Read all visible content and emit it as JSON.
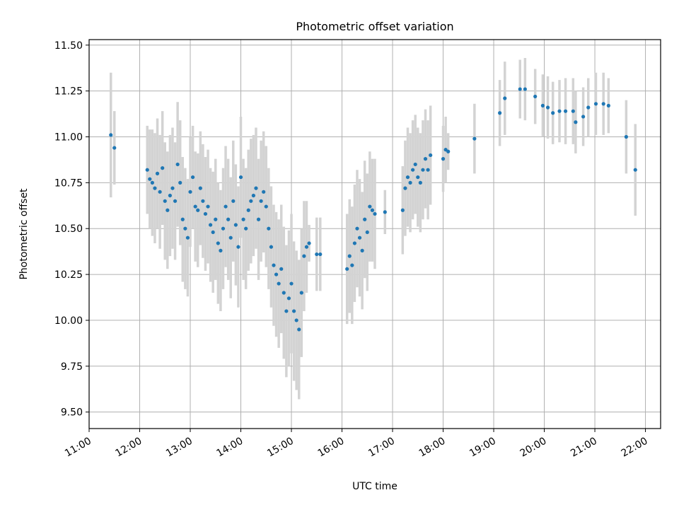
{
  "chart_data": {
    "type": "scatter",
    "title": "Photometric offset variation",
    "xlabel": "UTC time",
    "ylabel": "Photometric offset",
    "x_unit": "hours UTC",
    "xlim": [
      11.0,
      22.3
    ],
    "ylim": [
      9.41,
      11.53
    ],
    "grid": true,
    "x_ticks": [
      {
        "value": 11,
        "label": "11:00"
      },
      {
        "value": 12,
        "label": "12:00"
      },
      {
        "value": 13,
        "label": "13:00"
      },
      {
        "value": 14,
        "label": "14:00"
      },
      {
        "value": 15,
        "label": "15:00"
      },
      {
        "value": 16,
        "label": "16:00"
      },
      {
        "value": 17,
        "label": "17:00"
      },
      {
        "value": 18,
        "label": "18:00"
      },
      {
        "value": 19,
        "label": "19:00"
      },
      {
        "value": 20,
        "label": "20:00"
      },
      {
        "value": 21,
        "label": "21:00"
      },
      {
        "value": 22,
        "label": "22:00"
      }
    ],
    "y_ticks": [
      {
        "value": 9.5,
        "label": "9.50"
      },
      {
        "value": 9.75,
        "label": "9.75"
      },
      {
        "value": 10.0,
        "label": "10.00"
      },
      {
        "value": 10.25,
        "label": "10.25"
      },
      {
        "value": 10.5,
        "label": "10.50"
      },
      {
        "value": 10.75,
        "label": "10.75"
      },
      {
        "value": 11.0,
        "label": "11.00"
      },
      {
        "value": 11.25,
        "label": "11.25"
      },
      {
        "value": 11.5,
        "label": "11.50"
      }
    ],
    "point_color": "#1f77b4",
    "errorbar_color": "#d3d3d3",
    "series": [
      {
        "points": [
          {
            "x": 11.43,
            "y": 11.01,
            "err": 0.34
          },
          {
            "x": 11.5,
            "y": 10.94,
            "err": 0.2
          },
          {
            "x": 12.15,
            "y": 10.82,
            "err": 0.24
          },
          {
            "x": 12.2,
            "y": 10.77,
            "err": 0.27
          },
          {
            "x": 12.25,
            "y": 10.75,
            "err": 0.29
          },
          {
            "x": 12.3,
            "y": 10.72,
            "err": 0.3
          },
          {
            "x": 12.35,
            "y": 10.8,
            "err": 0.3
          },
          {
            "x": 12.4,
            "y": 10.7,
            "err": 0.31
          },
          {
            "x": 12.45,
            "y": 10.83,
            "err": 0.31
          },
          {
            "x": 12.5,
            "y": 10.65,
            "err": 0.32
          },
          {
            "x": 12.55,
            "y": 10.6,
            "err": 0.32
          },
          {
            "x": 12.6,
            "y": 10.68,
            "err": 0.33
          },
          {
            "x": 12.65,
            "y": 10.72,
            "err": 0.33
          },
          {
            "x": 12.7,
            "y": 10.65,
            "err": 0.32
          },
          {
            "x": 12.75,
            "y": 10.85,
            "err": 0.34
          },
          {
            "x": 12.8,
            "y": 10.75,
            "err": 0.34
          },
          {
            "x": 12.85,
            "y": 10.55,
            "err": 0.34
          },
          {
            "x": 12.9,
            "y": 10.5,
            "err": 0.33
          },
          {
            "x": 12.95,
            "y": 10.45,
            "err": 0.32
          },
          {
            "x": 13.0,
            "y": 10.7,
            "err": 0.3
          },
          {
            "x": 13.05,
            "y": 10.78,
            "err": 0.28
          },
          {
            "x": 13.1,
            "y": 10.62,
            "err": 0.3
          },
          {
            "x": 13.15,
            "y": 10.6,
            "err": 0.31
          },
          {
            "x": 13.2,
            "y": 10.72,
            "err": 0.31
          },
          {
            "x": 13.25,
            "y": 10.65,
            "err": 0.31
          },
          {
            "x": 13.3,
            "y": 10.58,
            "err": 0.31
          },
          {
            "x": 13.35,
            "y": 10.62,
            "err": 0.31
          },
          {
            "x": 13.4,
            "y": 10.52,
            "err": 0.31
          },
          {
            "x": 13.45,
            "y": 10.48,
            "err": 0.33
          },
          {
            "x": 13.5,
            "y": 10.55,
            "err": 0.33
          },
          {
            "x": 13.55,
            "y": 10.42,
            "err": 0.33
          },
          {
            "x": 13.6,
            "y": 10.38,
            "err": 0.33
          },
          {
            "x": 13.65,
            "y": 10.5,
            "err": 0.33
          },
          {
            "x": 13.7,
            "y": 10.62,
            "err": 0.33
          },
          {
            "x": 13.75,
            "y": 10.55,
            "err": 0.33
          },
          {
            "x": 13.8,
            "y": 10.45,
            "err": 0.33
          },
          {
            "x": 13.85,
            "y": 10.65,
            "err": 0.33
          },
          {
            "x": 13.9,
            "y": 10.52,
            "err": 0.33
          },
          {
            "x": 13.95,
            "y": 10.4,
            "err": 0.33
          },
          {
            "x": 14.0,
            "y": 10.78,
            "err": 0.33
          },
          {
            "x": 14.05,
            "y": 10.55,
            "err": 0.33
          },
          {
            "x": 14.1,
            "y": 10.5,
            "err": 0.33
          },
          {
            "x": 14.15,
            "y": 10.6,
            "err": 0.33
          },
          {
            "x": 14.2,
            "y": 10.65,
            "err": 0.34
          },
          {
            "x": 14.25,
            "y": 10.68,
            "err": 0.33
          },
          {
            "x": 14.3,
            "y": 10.72,
            "err": 0.33
          },
          {
            "x": 14.35,
            "y": 10.55,
            "err": 0.33
          },
          {
            "x": 14.4,
            "y": 10.65,
            "err": 0.33
          },
          {
            "x": 14.45,
            "y": 10.7,
            "err": 0.33
          },
          {
            "x": 14.5,
            "y": 10.62,
            "err": 0.33
          },
          {
            "x": 14.55,
            "y": 10.5,
            "err": 0.33
          },
          {
            "x": 14.6,
            "y": 10.4,
            "err": 0.33
          },
          {
            "x": 14.65,
            "y": 10.3,
            "err": 0.33
          },
          {
            "x": 14.7,
            "y": 10.25,
            "err": 0.34
          },
          {
            "x": 14.75,
            "y": 10.2,
            "err": 0.35
          },
          {
            "x": 14.8,
            "y": 10.28,
            "err": 0.35
          },
          {
            "x": 14.85,
            "y": 10.15,
            "err": 0.36
          },
          {
            "x": 14.9,
            "y": 10.05,
            "err": 0.36
          },
          {
            "x": 14.95,
            "y": 10.12,
            "err": 0.37
          },
          {
            "x": 15.0,
            "y": 10.2,
            "err": 0.38
          },
          {
            "x": 15.05,
            "y": 10.05,
            "err": 0.38
          },
          {
            "x": 15.1,
            "y": 10.0,
            "err": 0.38
          },
          {
            "x": 15.15,
            "y": 9.95,
            "err": 0.38
          },
          {
            "x": 15.2,
            "y": 10.15,
            "err": 0.35
          },
          {
            "x": 15.25,
            "y": 10.35,
            "err": 0.3
          },
          {
            "x": 15.3,
            "y": 10.4,
            "err": 0.25
          },
          {
            "x": 15.35,
            "y": 10.42,
            "err": 0.1
          },
          {
            "x": 15.5,
            "y": 10.36,
            "err": 0.2
          },
          {
            "x": 15.57,
            "y": 10.36,
            "err": 0.2
          },
          {
            "x": 16.1,
            "y": 10.28,
            "err": 0.3
          },
          {
            "x": 16.15,
            "y": 10.35,
            "err": 0.31
          },
          {
            "x": 16.2,
            "y": 10.3,
            "err": 0.32
          },
          {
            "x": 16.25,
            "y": 10.42,
            "err": 0.32
          },
          {
            "x": 16.3,
            "y": 10.5,
            "err": 0.32
          },
          {
            "x": 16.35,
            "y": 10.45,
            "err": 0.32
          },
          {
            "x": 16.4,
            "y": 10.38,
            "err": 0.32
          },
          {
            "x": 16.45,
            "y": 10.55,
            "err": 0.32
          },
          {
            "x": 16.5,
            "y": 10.48,
            "err": 0.32
          },
          {
            "x": 16.55,
            "y": 10.62,
            "err": 0.3
          },
          {
            "x": 16.6,
            "y": 10.6,
            "err": 0.28
          },
          {
            "x": 16.65,
            "y": 10.58,
            "err": 0.3
          },
          {
            "x": 16.85,
            "y": 10.59,
            "err": 0.12
          },
          {
            "x": 17.2,
            "y": 10.6,
            "err": 0.24
          },
          {
            "x": 17.25,
            "y": 10.72,
            "err": 0.26
          },
          {
            "x": 17.3,
            "y": 10.78,
            "err": 0.27
          },
          {
            "x": 17.35,
            "y": 10.75,
            "err": 0.27
          },
          {
            "x": 17.4,
            "y": 10.82,
            "err": 0.27
          },
          {
            "x": 17.45,
            "y": 10.85,
            "err": 0.27
          },
          {
            "x": 17.5,
            "y": 10.78,
            "err": 0.27
          },
          {
            "x": 17.55,
            "y": 10.75,
            "err": 0.27
          },
          {
            "x": 17.6,
            "y": 10.82,
            "err": 0.27
          },
          {
            "x": 17.65,
            "y": 10.88,
            "err": 0.27
          },
          {
            "x": 17.7,
            "y": 10.82,
            "err": 0.27
          },
          {
            "x": 17.75,
            "y": 10.9,
            "err": 0.27
          },
          {
            "x": 18.0,
            "y": 10.88,
            "err": 0.18
          },
          {
            "x": 18.05,
            "y": 10.93,
            "err": 0.18
          },
          {
            "x": 18.1,
            "y": 10.92,
            "err": 0.1
          },
          {
            "x": 18.62,
            "y": 10.99,
            "err": 0.19
          },
          {
            "x": 19.12,
            "y": 11.13,
            "err": 0.18
          },
          {
            "x": 19.22,
            "y": 11.21,
            "err": 0.2
          },
          {
            "x": 19.52,
            "y": 11.26,
            "err": 0.16
          },
          {
            "x": 19.62,
            "y": 11.26,
            "err": 0.17
          },
          {
            "x": 19.82,
            "y": 11.22,
            "err": 0.15
          },
          {
            "x": 19.97,
            "y": 11.17,
            "err": 0.17
          },
          {
            "x": 20.07,
            "y": 11.16,
            "err": 0.17
          },
          {
            "x": 20.17,
            "y": 11.13,
            "err": 0.17
          },
          {
            "x": 20.3,
            "y": 11.14,
            "err": 0.17
          },
          {
            "x": 20.42,
            "y": 11.14,
            "err": 0.18
          },
          {
            "x": 20.57,
            "y": 11.14,
            "err": 0.18
          },
          {
            "x": 20.62,
            "y": 11.08,
            "err": 0.17
          },
          {
            "x": 20.77,
            "y": 11.11,
            "err": 0.16
          },
          {
            "x": 20.87,
            "y": 11.16,
            "err": 0.16
          },
          {
            "x": 21.02,
            "y": 11.18,
            "err": 0.17
          },
          {
            "x": 21.17,
            "y": 11.18,
            "err": 0.17
          },
          {
            "x": 21.27,
            "y": 11.17,
            "err": 0.15
          },
          {
            "x": 21.62,
            "y": 11.0,
            "err": 0.2
          },
          {
            "x": 21.8,
            "y": 10.82,
            "err": 0.25
          }
        ]
      }
    ]
  }
}
